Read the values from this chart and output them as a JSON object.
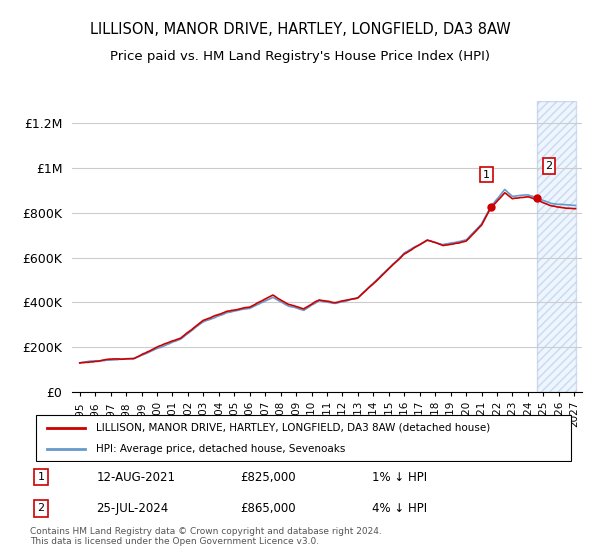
{
  "title": "LILLISON, MANOR DRIVE, HARTLEY, LONGFIELD, DA3 8AW",
  "subtitle": "Price paid vs. HM Land Registry's House Price Index (HPI)",
  "legend_line1": "LILLISON, MANOR DRIVE, HARTLEY, LONGFIELD, DA3 8AW (detached house)",
  "legend_line2": "HPI: Average price, detached house, Sevenoaks",
  "annotation1_label": "1",
  "annotation1_date": "12-AUG-2021",
  "annotation1_price": "£825,000",
  "annotation1_hpi": "1% ↓ HPI",
  "annotation2_label": "2",
  "annotation2_date": "25-JUL-2024",
  "annotation2_price": "£865,000",
  "annotation2_hpi": "4% ↓ HPI",
  "footer": "Contains HM Land Registry data © Crown copyright and database right 2024.\nThis data is licensed under the Open Government Licence v3.0.",
  "hpi_color": "#6699cc",
  "price_color": "#cc0000",
  "annotation_color": "#cc0000",
  "background_hatch_color": "#ddeeff",
  "ylim": [
    0,
    1300000
  ],
  "yticks": [
    0,
    200000,
    400000,
    600000,
    800000,
    1000000,
    1200000
  ],
  "ytick_labels": [
    "£0",
    "£200K",
    "£400K",
    "£600K",
    "£800K",
    "£1M",
    "£1.2M"
  ]
}
